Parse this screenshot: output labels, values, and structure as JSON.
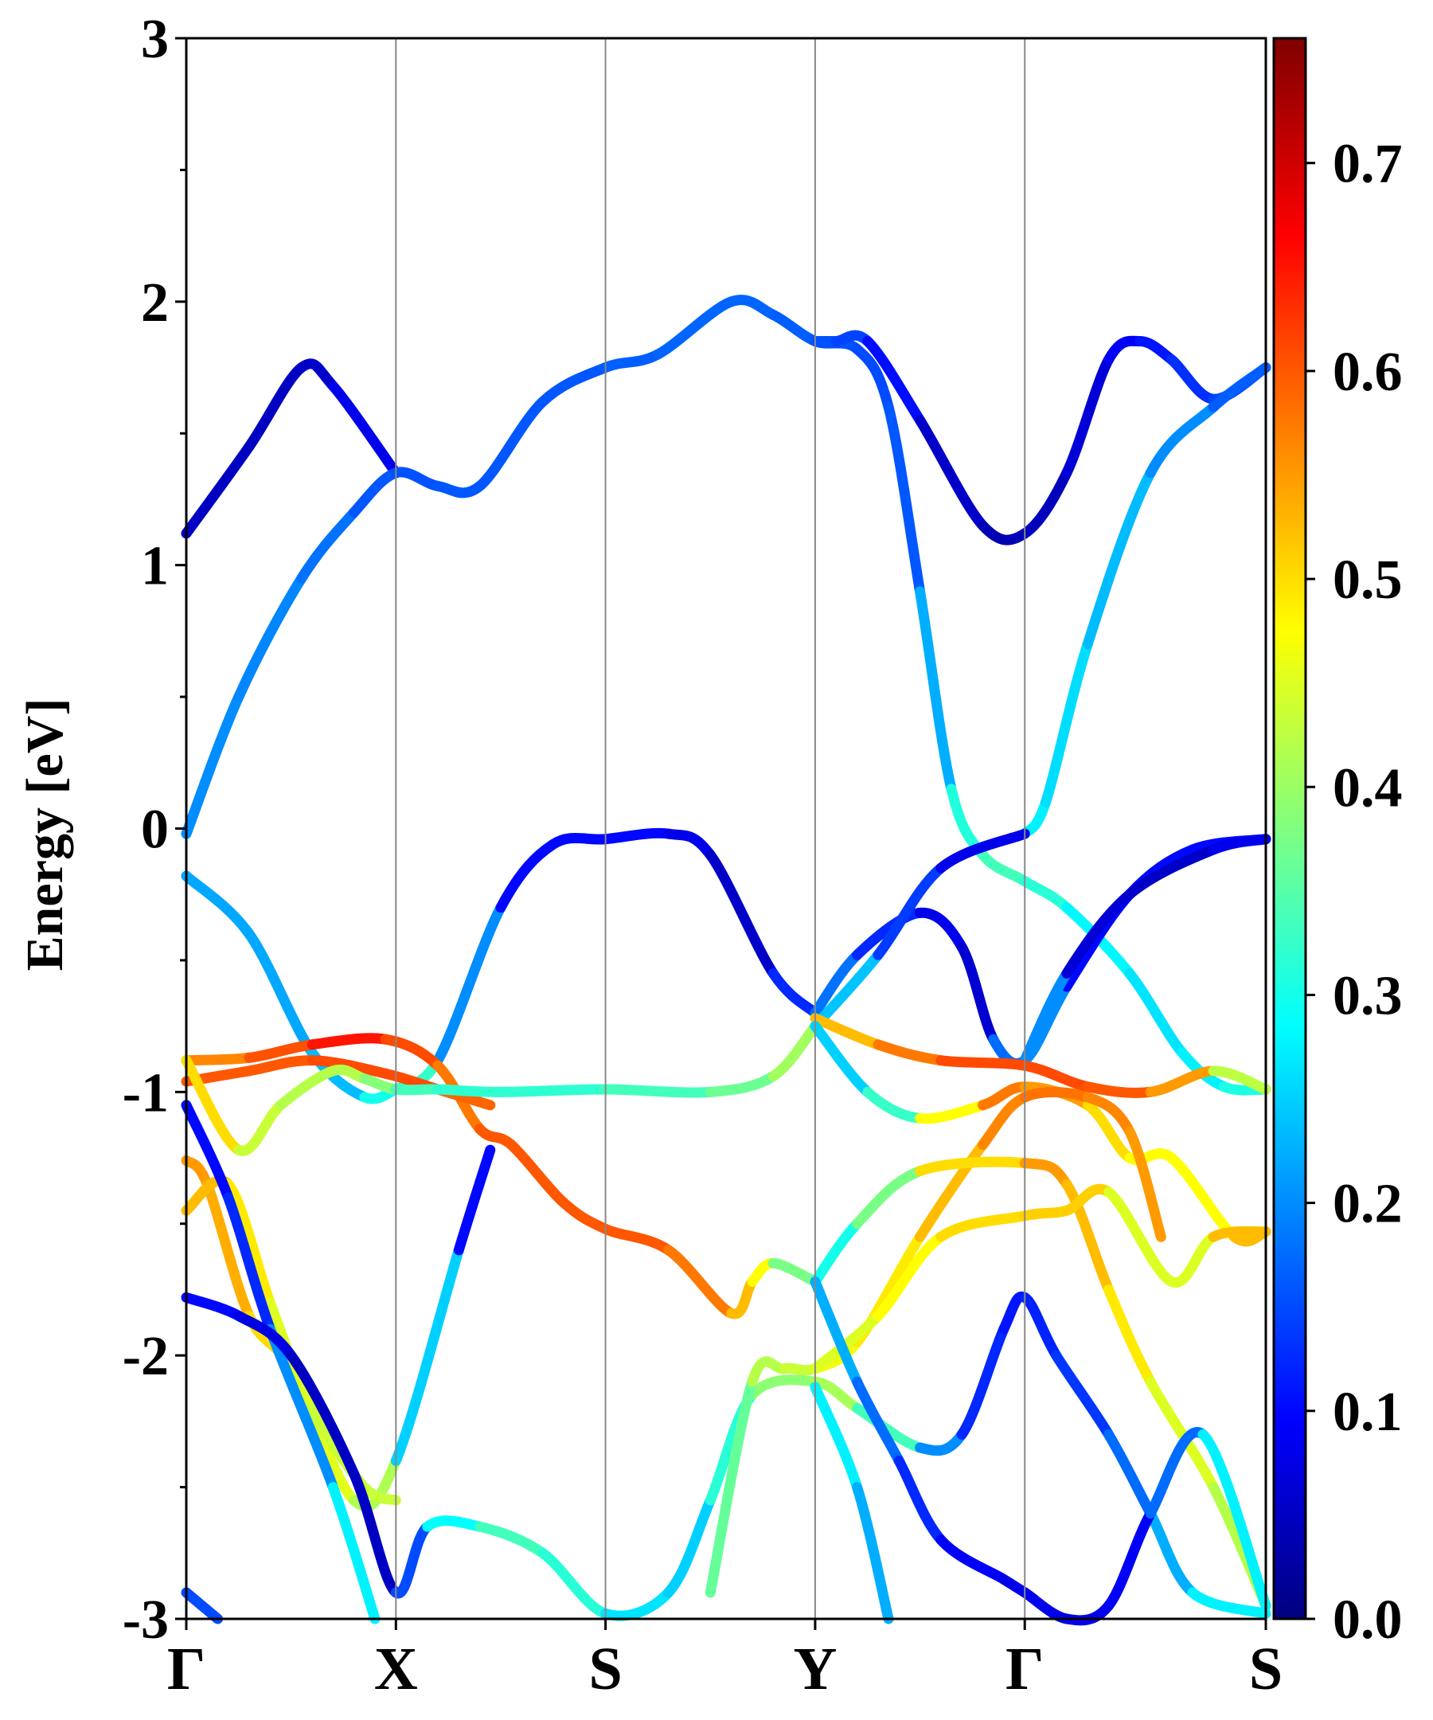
{
  "chart_data": {
    "type": "line",
    "ylabel": "Energy [eV]",
    "ylim": [
      -3,
      3
    ],
    "yticks": [
      3,
      2,
      1,
      0,
      -1,
      -2,
      -3
    ],
    "ytick_labels": [
      "3",
      "2",
      "1",
      "0",
      "-1",
      "-2",
      "-3"
    ],
    "xticks": [
      0,
      1,
      2,
      3,
      4,
      5.15
    ],
    "xtick_labels": [
      "Γ",
      "X",
      "S",
      "Y",
      "Γ",
      "S"
    ],
    "xlim": [
      0,
      5.15
    ],
    "grid": "vertical lines at high-symmetry points",
    "colorbar": {
      "range": [
        0,
        0.76
      ],
      "ticks": [
        0.0,
        0.1,
        0.2,
        0.3,
        0.4,
        0.5,
        0.6,
        0.7
      ],
      "tick_labels": [
        "0.0",
        "0.1",
        "0.2",
        "0.3",
        "0.4",
        "0.5",
        "0.6",
        "0.7"
      ],
      "colormap": "jet"
    },
    "series": [
      {
        "points": [
          [
            0,
            1.12,
            0.05
          ],
          [
            0.3,
            1.45,
            0.05
          ],
          [
            0.55,
            1.75,
            0.05
          ],
          [
            0.7,
            1.68,
            0.06
          ],
          [
            1,
            1.35,
            0.1
          ]
        ]
      },
      {
        "points": [
          [
            0,
            -0.02,
            0.2
          ],
          [
            0.25,
            0.5,
            0.2
          ],
          [
            0.55,
            0.95,
            0.19
          ],
          [
            0.8,
            1.2,
            0.17
          ],
          [
            1,
            1.35,
            0.15
          ],
          [
            1.2,
            1.3,
            0.16
          ],
          [
            1.4,
            1.3,
            0.16
          ],
          [
            1.7,
            1.62,
            0.16
          ],
          [
            2,
            1.75,
            0.16
          ],
          [
            2.25,
            1.8,
            0.17
          ],
          [
            2.6,
            2.0,
            0.17
          ],
          [
            2.8,
            1.95,
            0.17
          ],
          [
            3,
            1.85,
            0.16
          ],
          [
            3.2,
            1.82,
            0.15
          ],
          [
            3.35,
            1.6,
            0.15
          ],
          [
            3.5,
            0.9,
            0.17
          ],
          [
            3.65,
            0.15,
            0.28
          ],
          [
            3.8,
            -0.1,
            0.34
          ],
          [
            4,
            -0.2,
            0.33
          ],
          [
            4.2,
            -0.3,
            0.3
          ],
          [
            4.5,
            -0.55,
            0.26
          ],
          [
            4.75,
            -0.85,
            0.27
          ],
          [
            4.95,
            -0.98,
            0.28
          ],
          [
            5.15,
            -0.99,
            0.33
          ]
        ]
      },
      {
        "points": [
          [
            3,
            1.85,
            0.16
          ],
          [
            3.1,
            1.85,
            0.15
          ],
          [
            3.25,
            1.85,
            0.14
          ],
          [
            3.5,
            1.55,
            0.07
          ],
          [
            3.8,
            1.15,
            0.04
          ],
          [
            4,
            1.12,
            0.04
          ],
          [
            4.2,
            1.35,
            0.05
          ],
          [
            4.4,
            1.78,
            0.08
          ],
          [
            4.55,
            1.85,
            0.1
          ],
          [
            4.7,
            1.78,
            0.12
          ],
          [
            4.9,
            1.63,
            0.14
          ],
          [
            5.15,
            1.75,
            0.15
          ]
        ]
      },
      {
        "points": [
          [
            4,
            -0.02,
            0.28
          ],
          [
            4.1,
            0.1,
            0.27
          ],
          [
            4.3,
            0.7,
            0.25
          ],
          [
            4.6,
            1.35,
            0.22
          ],
          [
            4.9,
            1.6,
            0.18
          ],
          [
            5.15,
            1.75,
            0.15
          ]
        ]
      },
      {
        "points": [
          [
            1,
            -0.99,
            0.35
          ],
          [
            1.2,
            -0.88,
            0.3
          ],
          [
            1.5,
            -0.3,
            0.1
          ],
          [
            1.75,
            -0.06,
            0.1
          ],
          [
            2,
            -0.04,
            0.1
          ],
          [
            2.3,
            -0.02,
            0.1
          ],
          [
            2.5,
            -0.1,
            0.06
          ],
          [
            2.8,
            -0.55,
            0.05
          ],
          [
            3,
            -0.7,
            0.2
          ]
        ]
      },
      {
        "points": [
          [
            3,
            -0.7,
            0.2
          ],
          [
            3.2,
            -0.48,
            0.16
          ],
          [
            3.5,
            -0.32,
            0.09
          ],
          [
            3.7,
            -0.45,
            0.07
          ],
          [
            3.85,
            -0.8,
            0.05
          ],
          [
            4,
            -0.88,
            0.3
          ],
          [
            4.2,
            -0.6,
            0.1
          ],
          [
            4.5,
            -0.25,
            0.1
          ],
          [
            4.8,
            -0.08,
            0.1
          ],
          [
            5.15,
            -0.04,
            0.1
          ]
        ]
      },
      {
        "points": [
          [
            3,
            -0.75,
            0.28
          ],
          [
            3.3,
            -0.48,
            0.2
          ],
          [
            3.6,
            -0.15,
            0.08
          ],
          [
            4,
            -0.02,
            0.08
          ]
        ]
      },
      {
        "points": [
          [
            4,
            -0.88,
            0.32
          ],
          [
            4.2,
            -0.55,
            0.08
          ],
          [
            4.5,
            -0.25,
            0.05
          ],
          [
            4.9,
            -0.08,
            0.06
          ],
          [
            5.15,
            -0.04,
            0.1
          ]
        ]
      },
      {
        "points": [
          [
            0,
            -0.18,
            0.22
          ],
          [
            0.3,
            -0.4,
            0.22
          ],
          [
            0.6,
            -0.85,
            0.22
          ],
          [
            0.85,
            -1.02,
            0.25
          ],
          [
            1,
            -0.99,
            0.35
          ]
        ]
      },
      {
        "points": [
          [
            0,
            -0.88,
            0.55
          ],
          [
            0.3,
            -0.87,
            0.58
          ],
          [
            0.6,
            -0.82,
            0.63
          ],
          [
            0.95,
            -0.8,
            0.67
          ],
          [
            1.2,
            -0.9,
            0.55
          ],
          [
            1.4,
            -1.14,
            0.6
          ],
          [
            1.55,
            -1.2,
            0.6
          ],
          [
            1.8,
            -1.42,
            0.6
          ],
          [
            2,
            -1.52,
            0.6
          ],
          [
            2.3,
            -1.6,
            0.6
          ],
          [
            2.6,
            -1.84,
            0.55
          ],
          [
            2.7,
            -1.72,
            0.5
          ],
          [
            2.8,
            -1.65,
            0.45
          ],
          [
            3,
            -1.72,
            0.3
          ]
        ]
      },
      {
        "points": [
          [
            0,
            -0.96,
            0.6
          ],
          [
            0.3,
            -0.92,
            0.6
          ],
          [
            0.6,
            -0.88,
            0.6
          ],
          [
            0.95,
            -0.93,
            0.62
          ],
          [
            1.2,
            -0.99,
            0.6
          ],
          [
            1.45,
            -1.05,
            0.58
          ]
        ]
      },
      {
        "points": [
          [
            0,
            -0.88,
            0.55
          ],
          [
            0.25,
            -1.22,
            0.45
          ],
          [
            0.45,
            -1.05,
            0.42
          ],
          [
            0.7,
            -0.92,
            0.42
          ],
          [
            0.85,
            -0.95,
            0.42
          ],
          [
            1,
            -0.99,
            0.35
          ],
          [
            1.2,
            -0.99,
            0.32
          ],
          [
            1.5,
            -1.0,
            0.32
          ],
          [
            2,
            -0.99,
            0.32
          ],
          [
            2.5,
            -1.0,
            0.35
          ],
          [
            2.8,
            -0.94,
            0.38
          ],
          [
            3,
            -0.75,
            0.43
          ]
        ]
      },
      {
        "points": [
          [
            3,
            -0.72,
            0.5
          ],
          [
            3.3,
            -0.82,
            0.55
          ],
          [
            3.6,
            -0.88,
            0.6
          ],
          [
            4,
            -0.9,
            0.62
          ],
          [
            4.3,
            -0.98,
            0.6
          ],
          [
            4.6,
            -1.0,
            0.6
          ],
          [
            4.9,
            -0.92,
            0.5
          ],
          [
            5.15,
            -0.99,
            0.35
          ]
        ]
      },
      {
        "points": [
          [
            3,
            -0.75,
            0.25
          ],
          [
            3.25,
            -1.0,
            0.25
          ],
          [
            3.5,
            -1.1,
            0.4
          ],
          [
            3.8,
            -1.05,
            0.55
          ],
          [
            4,
            -0.98,
            0.6
          ],
          [
            4.3,
            -1.05,
            0.5
          ],
          [
            4.5,
            -1.25,
            0.5
          ],
          [
            4.7,
            -1.25,
            0.45
          ],
          [
            5,
            -1.55,
            0.5
          ],
          [
            5.15,
            -1.53,
            0.55
          ]
        ]
      },
      {
        "points": [
          [
            0,
            -1.26,
            0.55
          ],
          [
            0.1,
            -1.35,
            0.55
          ],
          [
            0.3,
            -1.85,
            0.52
          ],
          [
            0.5,
            -2.05,
            0.48
          ],
          [
            0.8,
            -2.55,
            0.43
          ],
          [
            1,
            -2.4,
            0.4
          ],
          [
            1.3,
            -1.6,
            0.1
          ],
          [
            1.45,
            -1.22,
            0.1
          ]
        ]
      },
      {
        "points": [
          [
            0,
            -1.45,
            0.55
          ],
          [
            0.2,
            -1.35,
            0.5
          ],
          [
            0.4,
            -1.8,
            0.48
          ],
          [
            0.6,
            -2.2,
            0.42
          ],
          [
            0.85,
            -2.5,
            0.45
          ],
          [
            1,
            -2.55,
            0.42
          ]
        ]
      },
      {
        "points": [
          [
            0,
            -1.05,
            0.1
          ],
          [
            0.2,
            -1.4,
            0.1
          ],
          [
            0.4,
            -1.9,
            0.15
          ],
          [
            0.7,
            -2.5,
            0.25
          ],
          [
            0.9,
            -3.0,
            0.3
          ]
        ]
      },
      {
        "points": [
          [
            0,
            -1.78,
            0.1
          ],
          [
            0.25,
            -1.85,
            0.1
          ],
          [
            0.5,
            -2.0,
            0.05
          ],
          [
            0.8,
            -2.45,
            0.05
          ],
          [
            1,
            -2.9,
            0.05
          ],
          [
            1.15,
            -2.65,
            0.25
          ],
          [
            1.4,
            -2.65,
            0.32
          ],
          [
            1.7,
            -2.75,
            0.35
          ],
          [
            2,
            -2.98,
            0.28
          ],
          [
            2.3,
            -2.9,
            0.25
          ],
          [
            2.5,
            -2.55,
            0.25
          ],
          [
            2.7,
            -2.15,
            0.38
          ],
          [
            3,
            -2.1,
            0.4
          ],
          [
            3.2,
            -2.2,
            0.42
          ],
          [
            3.5,
            -2.35,
            0.25
          ],
          [
            3.7,
            -2.3,
            0.15
          ],
          [
            3.9,
            -1.9,
            0.1
          ],
          [
            4,
            -1.78,
            0.12
          ],
          [
            4.15,
            -2.0,
            0.12
          ],
          [
            4.4,
            -2.3,
            0.15
          ],
          [
            4.6,
            -2.6,
            0.2
          ],
          [
            4.8,
            -2.9,
            0.25
          ],
          [
            5.15,
            -2.98,
            0.3
          ]
        ]
      },
      {
        "points": [
          [
            2.5,
            -2.9,
            0.3
          ],
          [
            2.7,
            -2.1,
            0.42
          ],
          [
            2.85,
            -2.05,
            0.42
          ],
          [
            3,
            -2.05,
            0.45
          ],
          [
            3.2,
            -1.95,
            0.48
          ],
          [
            3.5,
            -1.55,
            0.5
          ],
          [
            3.8,
            -1.2,
            0.55
          ],
          [
            4,
            -1.02,
            0.58
          ],
          [
            4.3,
            -1.02,
            0.58
          ],
          [
            4.5,
            -1.15,
            0.55
          ],
          [
            4.65,
            -1.55,
            0.55
          ]
        ]
      },
      {
        "points": [
          [
            3,
            -1.72,
            0.3
          ],
          [
            3.2,
            -1.5,
            0.3
          ],
          [
            3.5,
            -1.3,
            0.45
          ],
          [
            4,
            -1.27,
            0.55
          ],
          [
            4.2,
            -1.35,
            0.55
          ],
          [
            4.4,
            -1.75,
            0.5
          ],
          [
            4.6,
            -2.1,
            0.48
          ],
          [
            4.9,
            -2.5,
            0.42
          ],
          [
            5.15,
            -2.95,
            0.42
          ]
        ]
      },
      {
        "points": [
          [
            3,
            -2.05,
            0.45
          ],
          [
            3.3,
            -1.85,
            0.45
          ],
          [
            3.6,
            -1.55,
            0.5
          ],
          [
            4,
            -1.47,
            0.5
          ],
          [
            4.2,
            -1.45,
            0.52
          ],
          [
            4.4,
            -1.38,
            0.5
          ],
          [
            4.7,
            -1.72,
            0.4
          ],
          [
            4.9,
            -1.55,
            0.5
          ],
          [
            5.15,
            -1.53,
            0.55
          ]
        ]
      },
      {
        "points": [
          [
            3,
            -1.72,
            0.25
          ],
          [
            3.2,
            -2.1,
            0.2
          ],
          [
            3.4,
            -2.4,
            0.15
          ],
          [
            3.6,
            -2.7,
            0.1
          ],
          [
            3.9,
            -2.85,
            0.08
          ],
          [
            4,
            -2.9,
            0.08
          ],
          [
            4.2,
            -3.0,
            0.08
          ],
          [
            4.4,
            -2.95,
            0.08
          ],
          [
            4.6,
            -2.6,
            0.1
          ],
          [
            4.85,
            -2.3,
            0.25
          ],
          [
            5.15,
            -2.95,
            0.3
          ]
        ]
      },
      {
        "points": [
          [
            0,
            -2.9,
            0.15
          ],
          [
            0.15,
            -3.0,
            0.15
          ]
        ]
      },
      {
        "points": [
          [
            3,
            -2.12,
            0.3
          ],
          [
            3.2,
            -2.5,
            0.25
          ],
          [
            3.35,
            -3.0,
            0.2
          ]
        ]
      }
    ]
  }
}
